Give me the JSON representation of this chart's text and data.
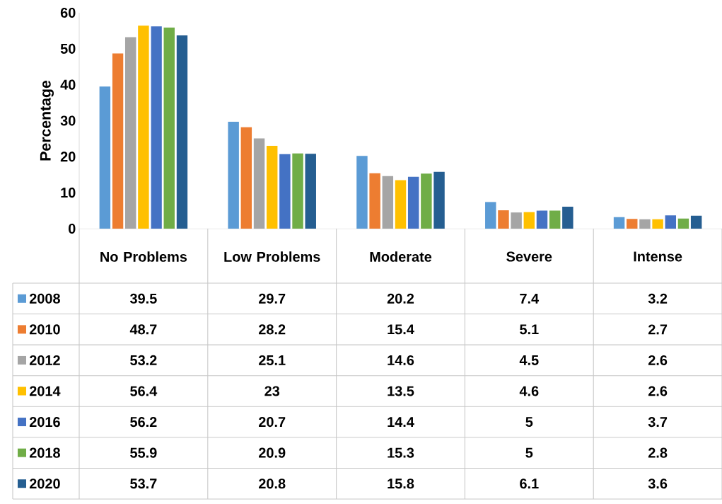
{
  "chart_data": {
    "type": "bar",
    "ylabel": "Percentage",
    "categories": [
      "No Problems",
      "Low Problems",
      "Moderate",
      "Severe",
      "Intense"
    ],
    "series": [
      {
        "name": "2008",
        "color": "#5b9bd5",
        "values": [
          39.5,
          29.7,
          20.2,
          7.4,
          3.2
        ]
      },
      {
        "name": "2010",
        "color": "#ed7d31",
        "values": [
          48.7,
          28.2,
          15.4,
          5.1,
          2.7
        ]
      },
      {
        "name": "2012",
        "color": "#a5a5a5",
        "values": [
          53.2,
          25.1,
          14.6,
          4.5,
          2.6
        ]
      },
      {
        "name": "2014",
        "color": "#ffc000",
        "values": [
          56.4,
          23,
          13.5,
          4.6,
          2.6
        ]
      },
      {
        "name": "2016",
        "color": "#4472c4",
        "values": [
          56.2,
          20.7,
          14.4,
          5,
          3.7
        ]
      },
      {
        "name": "2018",
        "color": "#70ad47",
        "values": [
          55.9,
          20.9,
          15.3,
          5,
          2.8
        ]
      },
      {
        "name": "2020",
        "color": "#255e91",
        "values": [
          53.7,
          20.8,
          15.8,
          6.1,
          3.6
        ]
      }
    ],
    "ylim": [
      0,
      60
    ],
    "yticks": [
      0,
      10,
      20,
      30,
      40,
      50,
      60
    ],
    "data_labels": true,
    "legend": "bottom"
  }
}
